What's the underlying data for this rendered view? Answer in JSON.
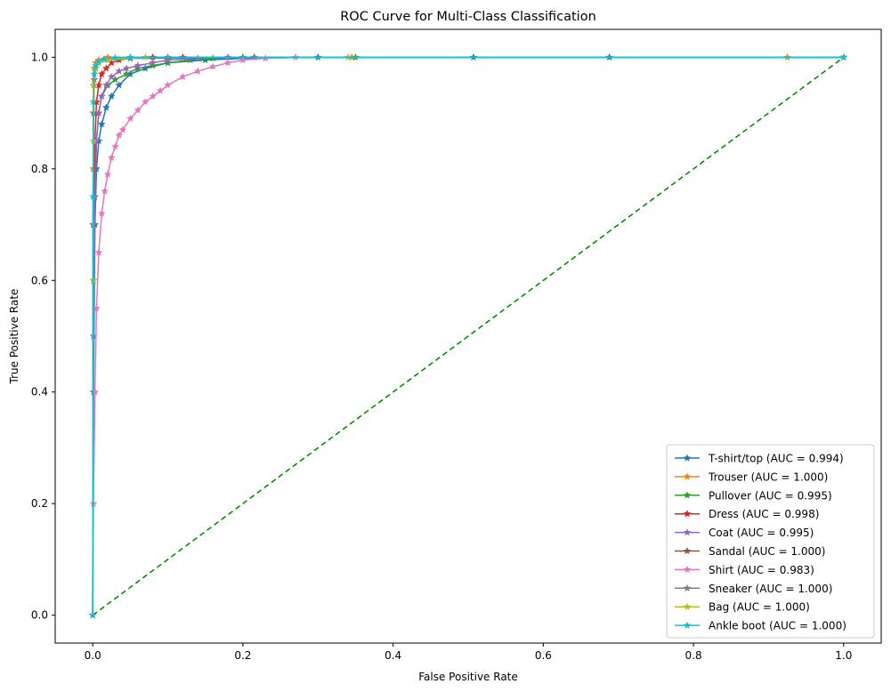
{
  "chart_data": {
    "type": "line",
    "title": "ROC Curve for Multi-Class Classification",
    "xlabel": "False Positive Rate",
    "ylabel": "True Positive Rate",
    "xlim": [
      -0.05,
      1.05
    ],
    "ylim": [
      -0.05,
      1.05
    ],
    "x_ticks": [
      "0.0",
      "0.2",
      "0.4",
      "0.6",
      "0.8",
      "1.0"
    ],
    "y_ticks": [
      "0.0",
      "0.2",
      "0.4",
      "0.6",
      "0.8",
      "1.0"
    ],
    "grid": false,
    "legend_position": "lower-right",
    "marker": "star",
    "series": [
      {
        "name": "T-shirt/top (AUC = 0.994)",
        "color": "#1f77b4",
        "x": [
          0,
          0.001,
          0.003,
          0.005,
          0.008,
          0.012,
          0.018,
          0.025,
          0.035,
          0.05,
          0.07,
          0.1,
          0.15,
          0.2,
          0.3,
          0.507,
          0.688,
          1.0
        ],
        "y": [
          0,
          0.4,
          0.7,
          0.8,
          0.85,
          0.88,
          0.91,
          0.93,
          0.95,
          0.97,
          0.98,
          0.99,
          0.995,
          0.998,
          1.0,
          1.0,
          1.0,
          1.0
        ]
      },
      {
        "name": "Trouser (AUC = 1.000)",
        "color": "#ff7f0e",
        "x": [
          0,
          0.0005,
          0.001,
          0.002,
          0.004,
          0.008,
          0.02,
          0.345,
          0.925,
          1.0
        ],
        "y": [
          0,
          0.8,
          0.95,
          0.98,
          0.99,
          0.995,
          1.0,
          1.0,
          1.0,
          1.0
        ]
      },
      {
        "name": "Pullover (AUC = 0.995)",
        "color": "#2ca02c",
        "x": [
          0,
          0.001,
          0.003,
          0.005,
          0.008,
          0.012,
          0.02,
          0.03,
          0.045,
          0.06,
          0.08,
          0.1,
          0.13,
          0.16,
          0.2,
          0.35,
          1.0
        ],
        "y": [
          0,
          0.5,
          0.75,
          0.85,
          0.9,
          0.93,
          0.95,
          0.96,
          0.97,
          0.98,
          0.985,
          0.99,
          0.995,
          0.998,
          1.0,
          1.0,
          1.0
        ]
      },
      {
        "name": "Dress (AUC = 0.998)",
        "color": "#d62728",
        "x": [
          0,
          0.001,
          0.003,
          0.005,
          0.008,
          0.012,
          0.018,
          0.025,
          0.035,
          0.05,
          0.08,
          0.12,
          1.0
        ],
        "y": [
          0,
          0.6,
          0.85,
          0.92,
          0.95,
          0.97,
          0.98,
          0.99,
          0.995,
          0.998,
          1.0,
          1.0,
          1.0
        ]
      },
      {
        "name": "Coat (AUC = 0.995)",
        "color": "#9467bd",
        "x": [
          0,
          0.001,
          0.003,
          0.005,
          0.008,
          0.012,
          0.018,
          0.025,
          0.035,
          0.045,
          0.06,
          0.08,
          0.1,
          0.14,
          0.18,
          1.0
        ],
        "y": [
          0,
          0.5,
          0.75,
          0.85,
          0.9,
          0.93,
          0.95,
          0.965,
          0.975,
          0.98,
          0.985,
          0.99,
          0.995,
          0.998,
          1.0,
          1.0
        ]
      },
      {
        "name": "Sandal (AUC = 1.000)",
        "color": "#8c564b",
        "x": [
          0,
          0.0005,
          0.001,
          0.002,
          0.004,
          0.008,
          0.02,
          0.05,
          0.215,
          1.0
        ],
        "y": [
          0,
          0.7,
          0.9,
          0.96,
          0.98,
          0.99,
          0.995,
          0.998,
          1.0,
          1.0
        ]
      },
      {
        "name": "Shirt (AUC = 0.983)",
        "color": "#e377c2",
        "x": [
          0,
          0.001,
          0.003,
          0.005,
          0.008,
          0.012,
          0.016,
          0.02,
          0.025,
          0.03,
          0.035,
          0.04,
          0.05,
          0.06,
          0.07,
          0.08,
          0.09,
          0.1,
          0.12,
          0.14,
          0.16,
          0.18,
          0.2,
          0.23,
          0.27,
          1.0
        ],
        "y": [
          0,
          0.2,
          0.4,
          0.55,
          0.65,
          0.72,
          0.76,
          0.79,
          0.82,
          0.84,
          0.86,
          0.87,
          0.89,
          0.905,
          0.92,
          0.93,
          0.94,
          0.95,
          0.965,
          0.975,
          0.983,
          0.99,
          0.995,
          0.998,
          1.0,
          1.0
        ]
      },
      {
        "name": "Sneaker (AUC = 1.000)",
        "color": "#7f7f7f",
        "x": [
          0,
          0.0005,
          0.001,
          0.002,
          0.004,
          0.008,
          0.02,
          0.05,
          0.1,
          1.0
        ],
        "y": [
          0,
          0.7,
          0.9,
          0.96,
          0.98,
          0.99,
          0.995,
          0.998,
          1.0,
          1.0
        ]
      },
      {
        "name": "Bag (AUC = 1.000)",
        "color": "#bcbd22",
        "x": [
          0,
          0.0005,
          0.001,
          0.002,
          0.004,
          0.008,
          0.02,
          0.07,
          0.34,
          1.0
        ],
        "y": [
          0,
          0.6,
          0.85,
          0.95,
          0.98,
          0.99,
          0.995,
          1.0,
          1.0,
          1.0
        ]
      },
      {
        "name": "Ankle boot (AUC = 1.000)",
        "color": "#17becf",
        "x": [
          0,
          0.0005,
          0.001,
          0.002,
          0.004,
          0.008,
          0.015,
          0.03,
          0.05,
          1.0
        ],
        "y": [
          0,
          0.75,
          0.92,
          0.97,
          0.985,
          0.993,
          0.997,
          0.999,
          1.0,
          1.0
        ]
      }
    ],
    "diagonal": {
      "x": [
        0,
        1
      ],
      "y": [
        0,
        1
      ],
      "color": "#008000",
      "style": "dashed"
    }
  }
}
